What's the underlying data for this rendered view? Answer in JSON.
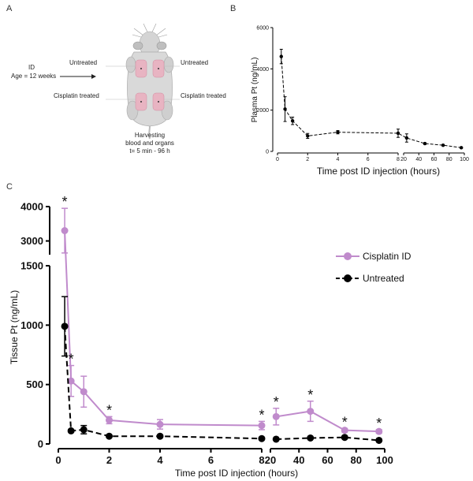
{
  "panel_labels": {
    "a": "A",
    "b": "B",
    "c": "C"
  },
  "schematic": {
    "id_label": "ID",
    "age_label": "Age = 12 weeks",
    "untreated_left": "Untreated",
    "untreated_right": "Untreated",
    "cisplatin_left": "Cisplatin treated",
    "cisplatin_right": "Cisplatin treated",
    "harvest_line1": "Harvesting",
    "harvest_line2": "blood and organs",
    "harvest_line3": "t= 5 min - 96 h"
  },
  "colors": {
    "cisplatin": "#c08bcc",
    "untreated": "#000000",
    "mouse_body": "#d9d9d9",
    "skin_patch": "#e8b4c2"
  },
  "chart_data": [
    {
      "type": "line",
      "panel": "B",
      "title": "",
      "xlabel": "Time post ID injection (hours)",
      "ylabel": "Plasma Pt (ng/mL)",
      "y_ticks": [
        0,
        2000,
        4000,
        6000
      ],
      "ylim": [
        0,
        6000
      ],
      "x_segments": [
        {
          "xlim": [
            0,
            8
          ],
          "ticks": [
            0,
            2,
            4,
            6,
            8
          ]
        },
        {
          "xlim": [
            20,
            100
          ],
          "ticks": [
            20,
            40,
            60,
            80,
            100
          ]
        }
      ],
      "tick_labels_x": [
        "0",
        "2",
        "4",
        "6",
        "8",
        "20",
        "40",
        "60",
        "80",
        "100"
      ],
      "tick_labels_y": [
        "0",
        "2000",
        "4000",
        "6000"
      ],
      "series": [
        {
          "name": "Plasma Pt",
          "x": [
            0.25,
            0.5,
            1,
            2,
            4,
            8,
            24,
            48,
            72,
            96
          ],
          "y": [
            4600,
            2050,
            1480,
            750,
            930,
            880,
            650,
            380,
            300,
            180
          ],
          "err": [
            350,
            600,
            180,
            120,
            80,
            200,
            200,
            40,
            30,
            30
          ]
        }
      ]
    },
    {
      "type": "line",
      "panel": "C",
      "title": "",
      "xlabel": "Time post ID injection (hours)",
      "ylabel": "Tissue Pt (ng/mL)",
      "y_segments": [
        {
          "ylim": [
            0,
            1500
          ],
          "ticks": [
            0,
            500,
            1000,
            1500
          ]
        },
        {
          "ylim": [
            2600,
            4000
          ],
          "ticks": [
            3000,
            4000
          ]
        }
      ],
      "x_segments": [
        {
          "xlim": [
            0,
            8
          ],
          "ticks": [
            0,
            2,
            4,
            6,
            8
          ]
        },
        {
          "xlim": [
            20,
            100
          ],
          "ticks": [
            20,
            40,
            60,
            80,
            100
          ]
        }
      ],
      "tick_labels_x": [
        "0",
        "2",
        "4",
        "6",
        "8",
        "20",
        "40",
        "60",
        "80",
        "100"
      ],
      "tick_labels_y": [
        "0",
        "500",
        "1000",
        "1500",
        "3000",
        "4000"
      ],
      "legend": [
        "Cisplatin ID",
        "Untreated"
      ],
      "significance_marker": "*",
      "series": [
        {
          "name": "Cisplatin ID",
          "color": "#c08bcc",
          "x": [
            0.25,
            0.5,
            1,
            2,
            4,
            8,
            24,
            48,
            72,
            96
          ],
          "y": [
            3300,
            530,
            440,
            200,
            165,
            155,
            230,
            275,
            115,
            105
          ],
          "err": [
            650,
            130,
            130,
            30,
            40,
            35,
            70,
            85,
            15,
            15
          ],
          "significant": [
            true,
            true,
            false,
            true,
            false,
            true,
            true,
            true,
            true,
            true
          ]
        },
        {
          "name": "Untreated",
          "color": "#000000",
          "x": [
            0.25,
            0.5,
            1,
            2,
            4,
            8,
            24,
            48,
            72,
            96
          ],
          "y": [
            990,
            110,
            120,
            65,
            65,
            45,
            40,
            50,
            55,
            30
          ],
          "err": [
            250,
            10,
            35,
            8,
            8,
            8,
            5,
            8,
            10,
            5
          ]
        }
      ]
    }
  ]
}
